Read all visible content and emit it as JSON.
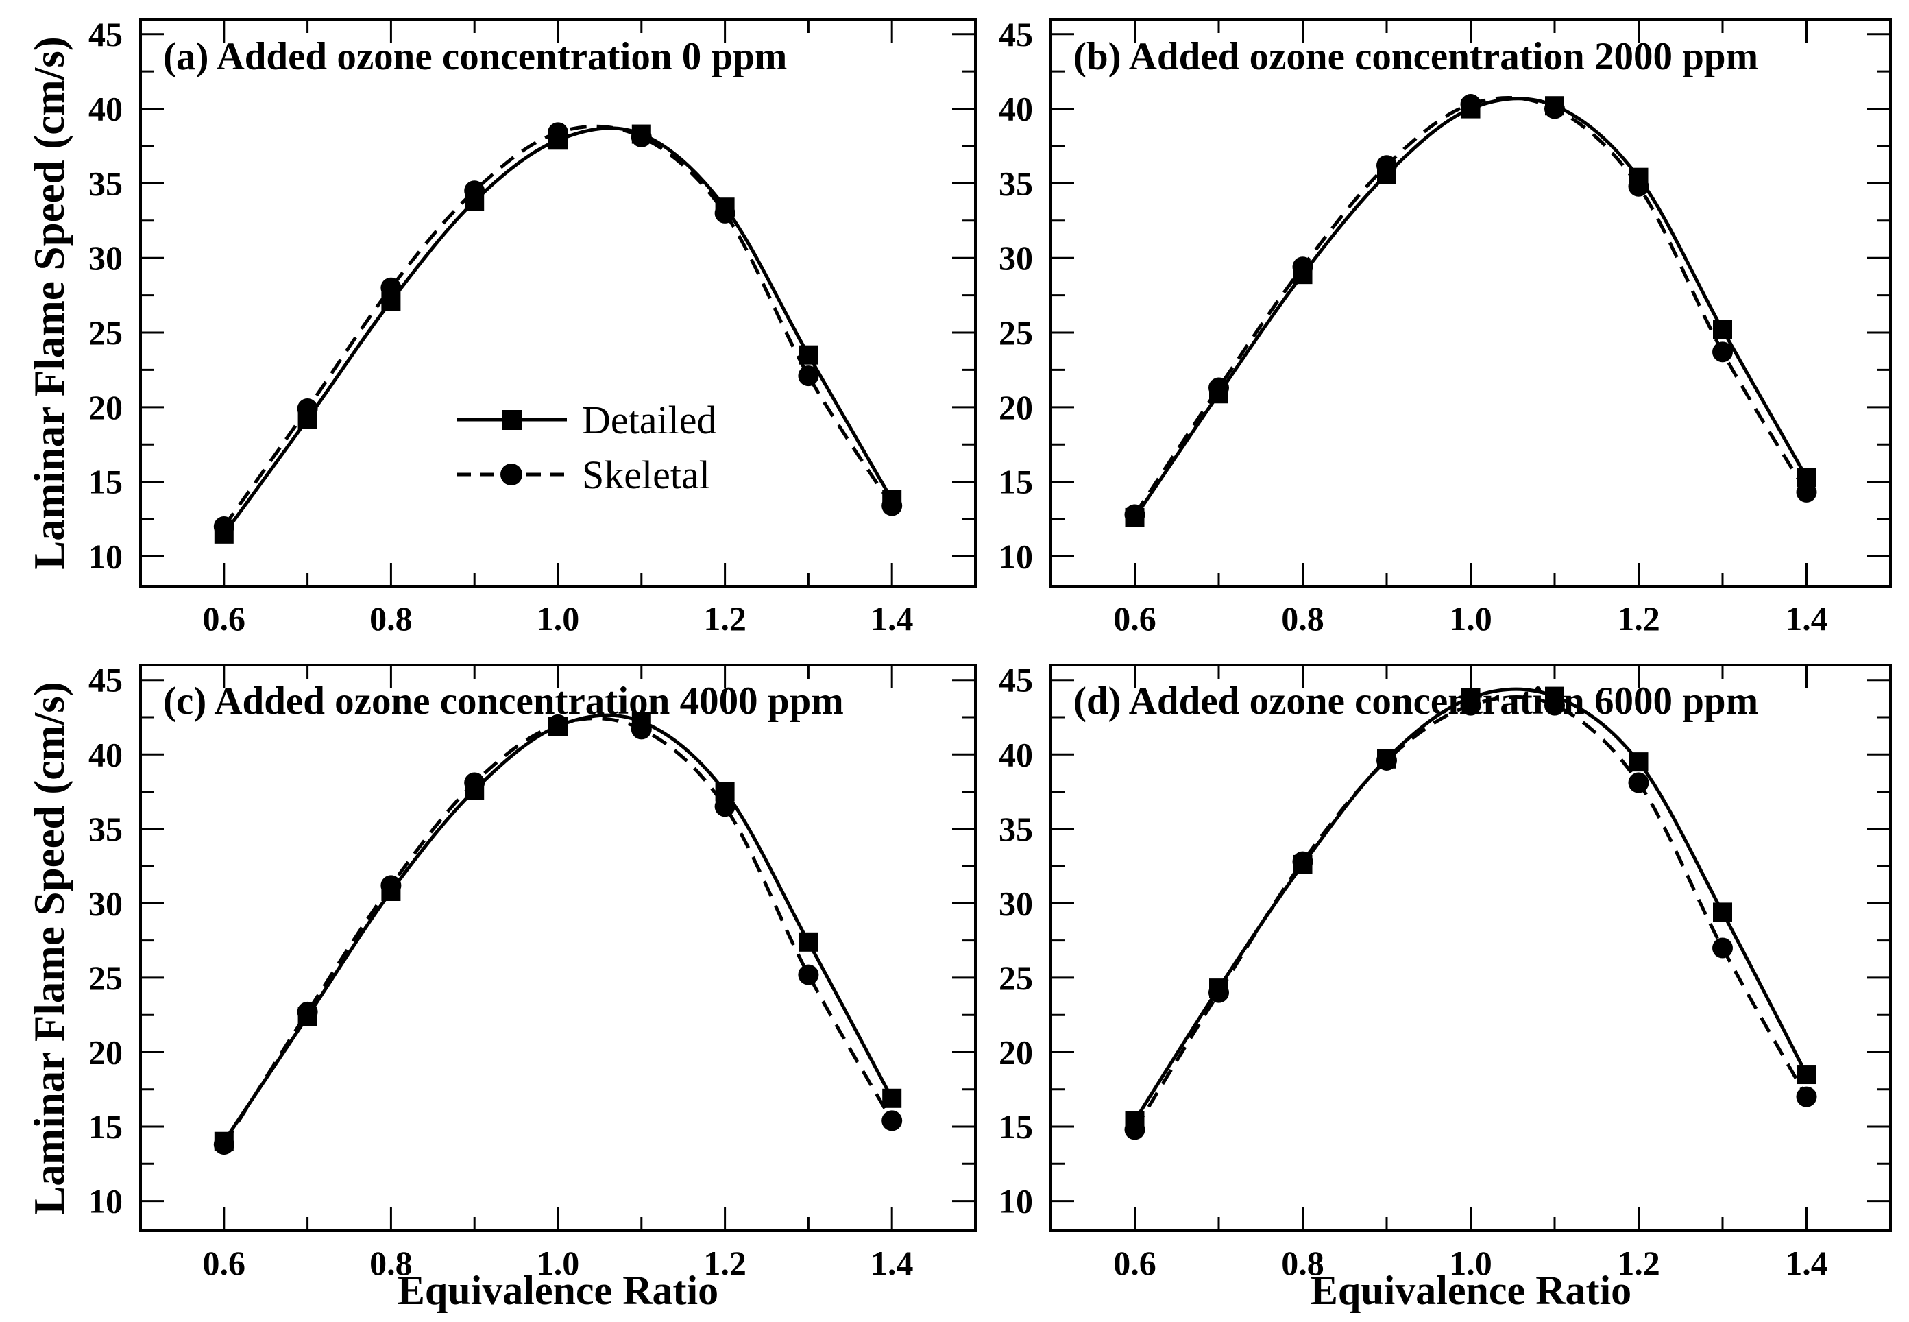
{
  "figure": {
    "y_axis_label": "Laminar Flame Speed (cm/s)",
    "x_axis_label": "Equivalence Ratio"
  },
  "legend": {
    "items": [
      {
        "label": "Detailed",
        "marker": "square-icon",
        "line": "solid"
      },
      {
        "label": "Skeletal",
        "marker": "circle-icon",
        "line": "dashed"
      }
    ]
  },
  "colors": {
    "foreground": "#000000",
    "background": "#ffffff"
  },
  "chart_data": [
    {
      "type": "line",
      "panel": "a",
      "title": "(a) Added ozone concentration 0 ppm",
      "ozone_ppm": 0,
      "x": [
        0.6,
        0.7,
        0.8,
        0.9,
        1.0,
        1.1,
        1.2,
        1.3,
        1.4
      ],
      "series": [
        {
          "name": "Detailed",
          "marker": "square",
          "line": "solid",
          "values": [
            11.5,
            19.2,
            27.1,
            33.8,
            37.9,
            38.3,
            33.4,
            23.5,
            13.8
          ]
        },
        {
          "name": "Skeletal",
          "marker": "circle",
          "line": "dashed",
          "values": [
            12.0,
            19.9,
            28.0,
            34.5,
            38.4,
            38.1,
            33.0,
            22.1,
            13.4
          ]
        }
      ],
      "xlabel": "Equivalence Ratio",
      "ylabel": "Laminar Flame Speed (cm/s)",
      "xlim": [
        0.5,
        1.5
      ],
      "ylim": [
        8,
        46
      ],
      "x_ticks": [
        "0.6",
        "0.8",
        "1.0",
        "1.2",
        "1.4"
      ],
      "y_ticks": [
        "10",
        "15",
        "20",
        "25",
        "30",
        "35",
        "40",
        "45"
      ],
      "grid": false,
      "legend_position": "center-left-inside"
    },
    {
      "type": "line",
      "panel": "b",
      "title": "(b) Added ozone concentration 2000 ppm",
      "ozone_ppm": 2000,
      "x": [
        0.6,
        0.7,
        0.8,
        0.9,
        1.0,
        1.1,
        1.2,
        1.3,
        1.4
      ],
      "series": [
        {
          "name": "Detailed",
          "marker": "square",
          "line": "solid",
          "values": [
            12.6,
            20.9,
            28.9,
            35.6,
            40.0,
            40.2,
            35.4,
            25.2,
            15.3
          ]
        },
        {
          "name": "Skeletal",
          "marker": "circle",
          "line": "dashed",
          "values": [
            12.8,
            21.3,
            29.4,
            36.2,
            40.3,
            40.0,
            34.8,
            23.7,
            14.3
          ]
        }
      ],
      "xlabel": "Equivalence Ratio",
      "ylabel": "Laminar Flame Speed (cm/s)",
      "xlim": [
        0.5,
        1.5
      ],
      "ylim": [
        8,
        46
      ],
      "x_ticks": [
        "0.6",
        "0.8",
        "1.0",
        "1.2",
        "1.4"
      ],
      "y_ticks": [
        "10",
        "15",
        "20",
        "25",
        "30",
        "35",
        "40",
        "45"
      ],
      "grid": false,
      "legend_position": "none"
    },
    {
      "type": "line",
      "panel": "c",
      "title": "(c) Added ozone concentration 4000 ppm",
      "ozone_ppm": 4000,
      "x": [
        0.6,
        0.7,
        0.8,
        0.9,
        1.0,
        1.1,
        1.2,
        1.3,
        1.4
      ],
      "series": [
        {
          "name": "Detailed",
          "marker": "square",
          "line": "solid",
          "values": [
            14.0,
            22.4,
            30.8,
            37.6,
            41.9,
            42.2,
            37.5,
            27.4,
            16.9
          ]
        },
        {
          "name": "Skeletal",
          "marker": "circle",
          "line": "dashed",
          "values": [
            13.8,
            22.7,
            31.2,
            38.1,
            42.0,
            41.7,
            36.5,
            25.2,
            15.4
          ]
        }
      ],
      "xlabel": "Equivalence Ratio",
      "ylabel": "Laminar Flame Speed (cm/s)",
      "xlim": [
        0.5,
        1.5
      ],
      "ylim": [
        8,
        46
      ],
      "x_ticks": [
        "0.6",
        "0.8",
        "1.0",
        "1.2",
        "1.4"
      ],
      "y_ticks": [
        "10",
        "15",
        "20",
        "25",
        "30",
        "35",
        "40",
        "45"
      ],
      "grid": false,
      "legend_position": "none"
    },
    {
      "type": "line",
      "panel": "d",
      "title": "(d) Added ozone concentration 6000 ppm",
      "ozone_ppm": 6000,
      "x": [
        0.6,
        0.7,
        0.8,
        0.9,
        1.0,
        1.1,
        1.2,
        1.3,
        1.4
      ],
      "series": [
        {
          "name": "Detailed",
          "marker": "square",
          "line": "solid",
          "values": [
            15.4,
            24.3,
            32.6,
            39.7,
            43.8,
            43.9,
            39.5,
            29.4,
            18.5
          ]
        },
        {
          "name": "Skeletal",
          "marker": "circle",
          "line": "dashed",
          "values": [
            14.8,
            24.0,
            32.8,
            39.6,
            43.3,
            43.3,
            38.1,
            27.0,
            17.0
          ]
        }
      ],
      "xlabel": "Equivalence Ratio",
      "ylabel": "Laminar Flame Speed (cm/s)",
      "xlim": [
        0.5,
        1.5
      ],
      "ylim": [
        8,
        46
      ],
      "x_ticks": [
        "0.6",
        "0.8",
        "1.0",
        "1.2",
        "1.4"
      ],
      "y_ticks": [
        "10",
        "15",
        "20",
        "25",
        "30",
        "35",
        "40",
        "45"
      ],
      "grid": false,
      "legend_position": "none"
    }
  ]
}
